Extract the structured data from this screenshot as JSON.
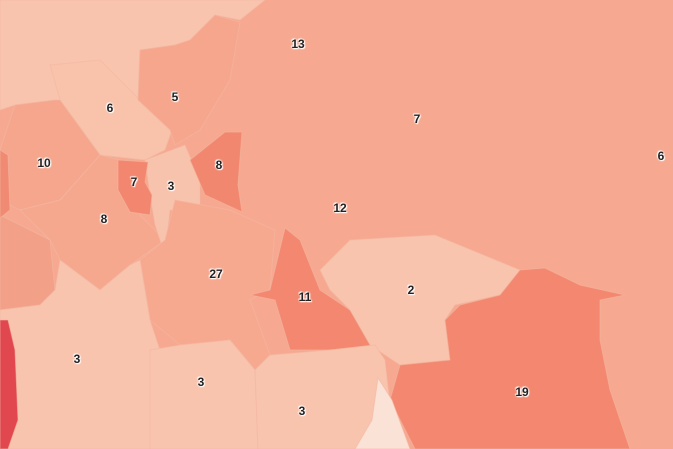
{
  "map": {
    "colors": {
      "palest": "#fbe2d7",
      "light": "#f8c3ac",
      "medium": "#f6a68d",
      "dark": "#f38a71",
      "red": "#e0474f"
    },
    "regions": [
      {
        "id": "r13",
        "value": "13",
        "shade": "medium"
      },
      {
        "id": "r5",
        "value": "5",
        "shade": "medium"
      },
      {
        "id": "r6",
        "value": "6",
        "shade": "light"
      },
      {
        "id": "r7-east",
        "value": "7",
        "shade": "medium"
      },
      {
        "id": "r6-east",
        "value": "6",
        "shade": "medium"
      },
      {
        "id": "r10",
        "value": "10",
        "shade": "medium"
      },
      {
        "id": "r7-west",
        "value": "7",
        "shade": "dark"
      },
      {
        "id": "r3-north",
        "value": "3",
        "shade": "light"
      },
      {
        "id": "r8-center",
        "value": "8",
        "shade": "dark"
      },
      {
        "id": "r8-west",
        "value": "8",
        "shade": "medium"
      },
      {
        "id": "r12",
        "value": "12",
        "shade": "medium"
      },
      {
        "id": "r27",
        "value": "27",
        "shade": "medium"
      },
      {
        "id": "r11",
        "value": "11",
        "shade": "dark"
      },
      {
        "id": "r2",
        "value": "2",
        "shade": "light"
      },
      {
        "id": "r19",
        "value": "19",
        "shade": "dark"
      },
      {
        "id": "r3-sw",
        "value": "3",
        "shade": "light"
      },
      {
        "id": "r3-south",
        "value": "3",
        "shade": "light"
      },
      {
        "id": "r3-se",
        "value": "3",
        "shade": "light"
      }
    ]
  }
}
